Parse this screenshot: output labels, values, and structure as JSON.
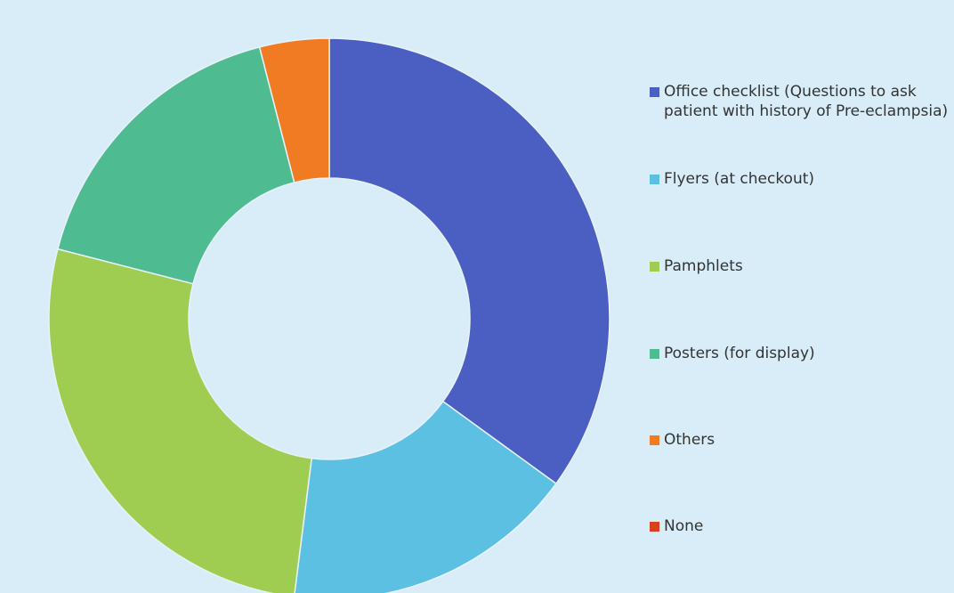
{
  "chart_data": {
    "type": "donut",
    "categories": [
      "Office checklist (Questions to ask patient with history of Pre-eclampsia)",
      "Flyers (at checkout)",
      "Pamphlets",
      "Posters (for display)",
      "Others",
      "None"
    ],
    "values": [
      35,
      17,
      27,
      17,
      4,
      0
    ],
    "colors": [
      "#4a5fc1",
      "#5bc0e2",
      "#9fcd52",
      "#4fbb90",
      "#f07b22",
      "#d9411e"
    ],
    "legend": "right"
  }
}
